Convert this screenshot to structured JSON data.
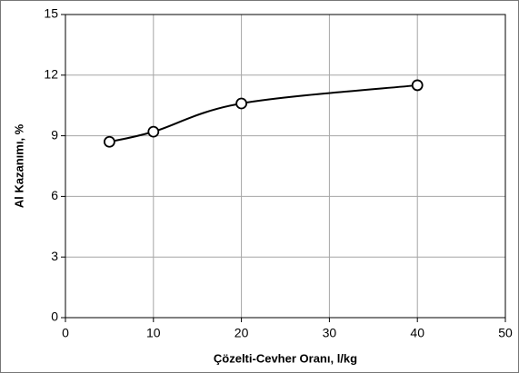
{
  "chart_data": {
    "type": "line",
    "x_label": "Çözelti-Cevher Oranı, l/kg",
    "y_label": "Al  Kazanımı, %",
    "x": [
      5,
      10,
      20,
      40
    ],
    "values": [
      8.7,
      9.2,
      10.6,
      11.5
    ],
    "color": "#000000",
    "smooth": true,
    "markers": true,
    "xlim": [
      0,
      50
    ],
    "xticks": [
      0,
      10,
      20,
      30,
      40,
      50
    ],
    "ylim": [
      0,
      15
    ],
    "yticks": [
      0,
      3,
      6,
      9,
      12,
      15
    ],
    "grid": true
  }
}
